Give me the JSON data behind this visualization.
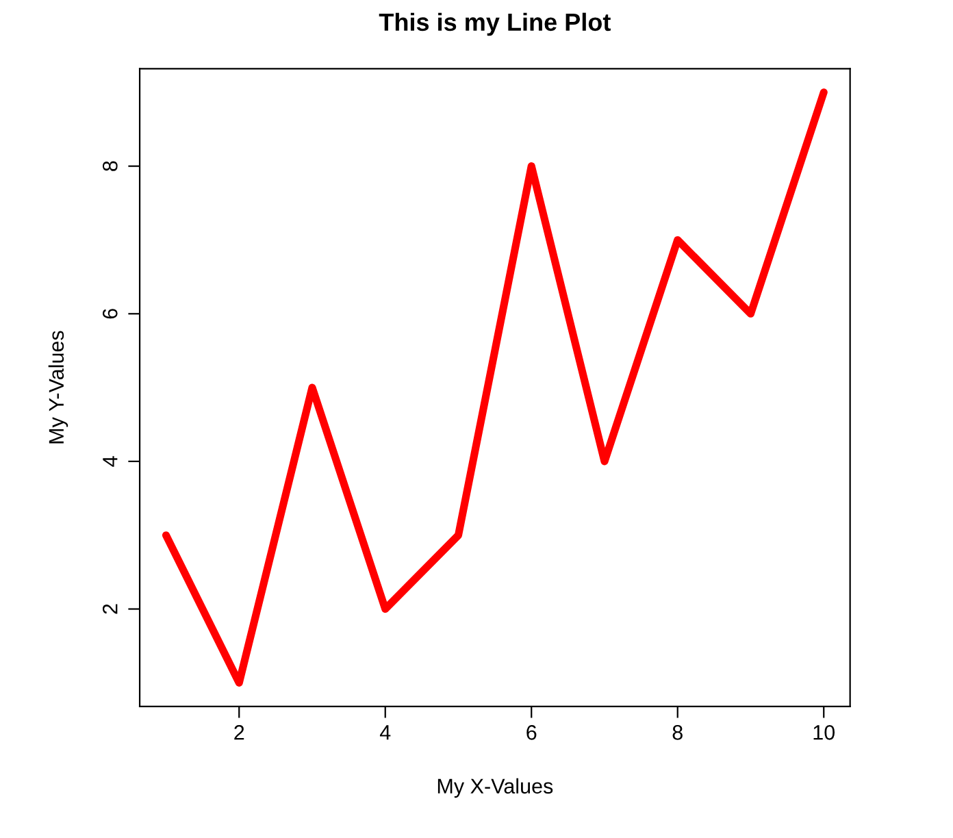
{
  "chart_data": {
    "type": "line",
    "title": "This is my Line Plot",
    "xlabel": "My X-Values",
    "ylabel": "My Y-Values",
    "x": [
      1,
      2,
      3,
      4,
      5,
      6,
      7,
      8,
      9,
      10
    ],
    "series": [
      {
        "color": "#ff0000",
        "values": [
          3,
          1,
          5,
          2,
          3,
          8,
          4,
          7,
          6,
          9
        ]
      }
    ],
    "xlim": [
      0.64,
      10.36
    ],
    "ylim": [
      0.68,
      9.32
    ],
    "xticks": [
      2,
      4,
      6,
      8,
      10
    ],
    "yticks": [
      2,
      4,
      6,
      8
    ],
    "grid": false,
    "marker": "none",
    "line_style": "solid"
  }
}
